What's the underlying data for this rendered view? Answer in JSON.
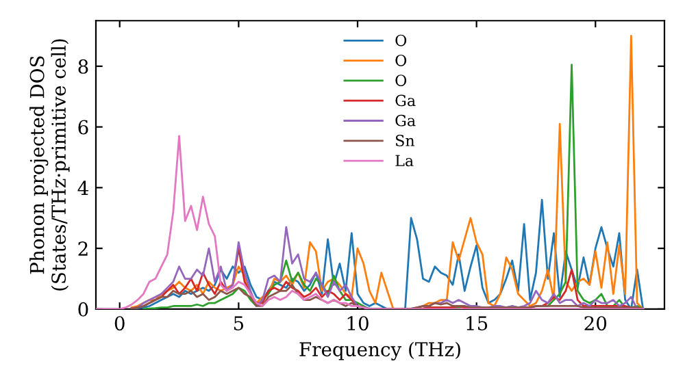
{
  "chart_data": {
    "type": "line",
    "xlabel": "Frequency (THz)",
    "ylabel": "Phonon projected DOS\n(States/THz·primitive cell)",
    "x": [
      -1,
      -0.75,
      -0.5,
      -0.25,
      0,
      0.25,
      0.5,
      0.75,
      1,
      1.25,
      1.5,
      1.75,
      2,
      2.25,
      2.5,
      2.75,
      3,
      3.25,
      3.5,
      3.75,
      4,
      4.25,
      4.5,
      4.75,
      5,
      5.25,
      5.5,
      5.75,
      6,
      6.25,
      6.5,
      6.75,
      7,
      7.25,
      7.5,
      7.75,
      8,
      8.25,
      8.5,
      8.75,
      9,
      9.25,
      9.5,
      9.75,
      10,
      10.25,
      10.5,
      10.75,
      11,
      11.25,
      11.5,
      11.75,
      12,
      12.25,
      12.5,
      12.75,
      13,
      13.25,
      13.5,
      13.75,
      14,
      14.25,
      14.5,
      14.75,
      15,
      15.25,
      15.5,
      15.75,
      16,
      16.25,
      16.5,
      16.75,
      17,
      17.25,
      17.5,
      17.75,
      18,
      18.25,
      18.5,
      18.75,
      19,
      19.25,
      19.5,
      19.75,
      20,
      20.25,
      20.5,
      20.75,
      21,
      21.25,
      21.5,
      21.75,
      22
    ],
    "series": [
      {
        "name": "O",
        "color": "#1f77b4",
        "values": [
          null,
          null,
          null,
          null,
          null,
          null,
          0.02,
          0.03,
          0.05,
          0.1,
          0.2,
          0.3,
          0.4,
          0.5,
          0.4,
          0.6,
          0.5,
          0.6,
          0.7,
          0.6,
          0.8,
          1.3,
          1.0,
          1.4,
          1.2,
          1.4,
          0.8,
          0.4,
          0.3,
          0.6,
          0.9,
          0.8,
          0.7,
          1.0,
          0.9,
          0.6,
          0.8,
          1.2,
          0.5,
          2.3,
          0.8,
          1.5,
          0.6,
          2.5,
          0.5,
          0.2,
          0.1,
          0.2,
          0.1,
          0,
          0,
          0,
          0,
          3.0,
          2.3,
          1.0,
          0.9,
          1.4,
          1.2,
          1.1,
          0.8,
          1.8,
          0.6,
          1.4,
          2.1,
          0.7,
          0.2,
          0.3,
          0.5,
          1.0,
          1.6,
          0.6,
          2.8,
          0.3,
          1.2,
          3.6,
          1.0,
          2.5,
          0.4,
          1.9,
          1.3,
          0.7,
          1.7,
          0.8,
          2.0,
          2.7,
          2.0,
          1.4,
          2.5,
          0.3,
          0,
          1.3,
          0
        ]
      },
      {
        "name": "O",
        "color": "#ff7f0e",
        "values": [
          null,
          null,
          null,
          null,
          null,
          null,
          0.05,
          0.1,
          0.2,
          0.3,
          0.3,
          0.5,
          0.6,
          0.7,
          0.9,
          0.7,
          0.6,
          0.8,
          0.5,
          0.9,
          0.7,
          0.6,
          0.7,
          0.8,
          1.4,
          1.1,
          0.5,
          0.2,
          0.4,
          0.5,
          1.0,
          0.9,
          1.1,
          0.8,
          1.2,
          0.7,
          2.2,
          1.9,
          0.6,
          0.9,
          1.0,
          0.8,
          0.5,
          0.4,
          2.0,
          1.5,
          0.6,
          0.2,
          1.2,
          0.6,
          0,
          0,
          0,
          0,
          0.05,
          0.1,
          0.2,
          0.2,
          0.3,
          0.3,
          2.2,
          1.6,
          2.3,
          3.0,
          2.2,
          1.8,
          0.2,
          0.1,
          0.5,
          1.7,
          1.3,
          0.5,
          0.3,
          0.1,
          0.2,
          0.6,
          1.3,
          0.3,
          6.1,
          0.9,
          0.6,
          0.9,
          1.0,
          0.8,
          1.9,
          0.7,
          2.2,
          0.5,
          2.1,
          0.5,
          9.0,
          0.2,
          0
        ]
      },
      {
        "name": "O",
        "color": "#2ca02c",
        "values": [
          null,
          null,
          null,
          null,
          null,
          null,
          null,
          null,
          0,
          0.02,
          0.03,
          0.05,
          0.05,
          0.1,
          0.1,
          0.1,
          0.1,
          0.15,
          0.1,
          0.2,
          0.2,
          0.3,
          0.4,
          0.5,
          0.7,
          0.6,
          0.3,
          0.1,
          0.3,
          0.5,
          0.8,
          0.9,
          1.6,
          0.9,
          1.2,
          0.8,
          0.6,
          1.0,
          0.8,
          0.5,
          1.1,
          0.6,
          0.3,
          0.3,
          0.2,
          0.1,
          0,
          0,
          0,
          0,
          0,
          0,
          0,
          0,
          0,
          0.02,
          0.05,
          0.05,
          0.05,
          0.05,
          0.05,
          0.05,
          0.1,
          0.05,
          0.05,
          0.05,
          0.02,
          0.02,
          0.05,
          0.05,
          0.1,
          0.05,
          0.05,
          0.05,
          0.1,
          0.1,
          0.1,
          0.3,
          0.5,
          0.9,
          8.05,
          0.6,
          0.3,
          0.2,
          0.3,
          0.5,
          0.1,
          0.1,
          0.3,
          0.05,
          0.05,
          0.1,
          0
        ]
      },
      {
        "name": "Ga",
        "color": "#d62728",
        "values": [
          null,
          null,
          null,
          null,
          null,
          null,
          0.02,
          0.05,
          0.1,
          0.2,
          0.3,
          0.4,
          0.6,
          0.8,
          0.5,
          0.7,
          1.0,
          0.6,
          1.2,
          0.8,
          0.5,
          0.9,
          0.6,
          0.8,
          2.0,
          0.9,
          0.5,
          0.2,
          0.2,
          0.6,
          0.7,
          0.6,
          0.9,
          0.7,
          0.6,
          0.4,
          0.5,
          0.7,
          0.4,
          0.6,
          0.5,
          0.3,
          0.5,
          0.3,
          0.1,
          0.05,
          0,
          0,
          0,
          0,
          0,
          0,
          0,
          0,
          0,
          0.02,
          0.05,
          0.05,
          0.05,
          0.05,
          0.05,
          0.1,
          0.05,
          0.05,
          0.02,
          0.02,
          0.02,
          0.05,
          0.05,
          0.05,
          0.05,
          0.05,
          0.05,
          0.05,
          0.1,
          0.1,
          0.2,
          0.4,
          0.3,
          0.6,
          1.3,
          0.3,
          0.1,
          0.1,
          0.1,
          0.1,
          0.1,
          0.1,
          0.1,
          0.1,
          0.05,
          0.05,
          0
        ]
      },
      {
        "name": "Ga",
        "color": "#9467bd",
        "values": [
          null,
          null,
          null,
          null,
          null,
          null,
          0.02,
          0.05,
          0.2,
          0.3,
          0.4,
          0.5,
          0.7,
          0.9,
          1.4,
          1.0,
          1.0,
          1.3,
          1.1,
          2.0,
          0.9,
          1.4,
          0.6,
          0.8,
          2.2,
          1.2,
          0.6,
          0.1,
          0.3,
          1.0,
          1.1,
          0.9,
          2.7,
          1.5,
          1.8,
          1.0,
          0.9,
          1.2,
          0.8,
          0.4,
          0.9,
          0.6,
          0.8,
          0.4,
          0.1,
          0.05,
          0.02,
          0,
          0,
          0,
          0,
          0,
          0,
          0,
          0.05,
          0.1,
          0.1,
          0.2,
          0.2,
          0.3,
          0.2,
          0.3,
          0.2,
          0.1,
          0.1,
          0.05,
          0.05,
          0.1,
          0.1,
          0.05,
          0.1,
          0.05,
          0.1,
          0.2,
          0.6,
          0.3,
          0.2,
          0.5,
          0.2,
          0.3,
          0.3,
          0.1,
          0.2,
          0.1,
          0.3,
          0.2,
          0.2,
          0.3,
          0.1,
          0.2,
          0.4,
          0,
          0
        ]
      },
      {
        "name": "Sn",
        "color": "#8c564b",
        "values": [
          null,
          null,
          null,
          null,
          null,
          null,
          0.02,
          0.05,
          0.1,
          0.2,
          0.3,
          0.4,
          0.4,
          0.6,
          0.5,
          0.5,
          0.6,
          0.4,
          0.5,
          0.3,
          0.4,
          0.6,
          0.5,
          0.6,
          0.7,
          0.5,
          0.4,
          0.1,
          0.1,
          0.4,
          0.5,
          0.6,
          0.6,
          0.8,
          0.5,
          0.3,
          0.3,
          0.4,
          0.3,
          0.2,
          0.3,
          0.2,
          0.1,
          0.2,
          0.1,
          0.05,
          0,
          0,
          0,
          0,
          0,
          0,
          0,
          0.02,
          0.05,
          0.1,
          0.1,
          0.2,
          0.15,
          0.2,
          0.1,
          0.1,
          0.1,
          0.05,
          0.05,
          0.05,
          0.05,
          0.05,
          0.05,
          0.05,
          0.05,
          0.05,
          0.05,
          0.05,
          0.1,
          0.1,
          0.1,
          0.1,
          0.1,
          0.1,
          0.1,
          0.1,
          0.05,
          0.05,
          0.05,
          0.05,
          0.05,
          0.05,
          0.05,
          0.05,
          0.05,
          0.05,
          0
        ]
      },
      {
        "name": "La",
        "color": "#e377c2",
        "values": [
          0,
          0,
          0,
          0,
          0,
          0.05,
          0.15,
          0.3,
          0.5,
          0.9,
          1.0,
          1.4,
          1.8,
          3.2,
          5.7,
          2.9,
          3.4,
          2.6,
          3.7,
          2.8,
          2.4,
          0.8,
          0.6,
          0.7,
          0.9,
          0.8,
          0.5,
          0.2,
          0.1,
          0.3,
          0.4,
          0.3,
          0.4,
          0.6,
          0.5,
          0.3,
          0.4,
          0.5,
          0.3,
          0.2,
          0.3,
          0.2,
          0.2,
          0.1,
          0.1,
          0.05,
          0,
          0,
          0,
          0,
          0,
          0,
          0,
          0,
          0,
          0,
          0,
          0,
          0,
          0,
          0,
          0,
          0,
          0,
          0,
          0,
          0,
          0,
          0,
          0,
          0,
          0,
          0,
          0,
          0,
          0,
          0,
          0,
          0,
          0,
          0,
          0,
          0,
          0,
          0,
          0,
          0,
          0,
          0,
          0,
          0,
          0,
          0
        ]
      }
    ],
    "xlim": [
      -1,
      22.9
    ],
    "ylim": [
      0,
      9.5
    ],
    "xticks": [
      0,
      5,
      10,
      15,
      20
    ],
    "yticks": [
      0,
      2,
      4,
      6,
      8
    ],
    "grid": false,
    "legend": "top center"
  }
}
